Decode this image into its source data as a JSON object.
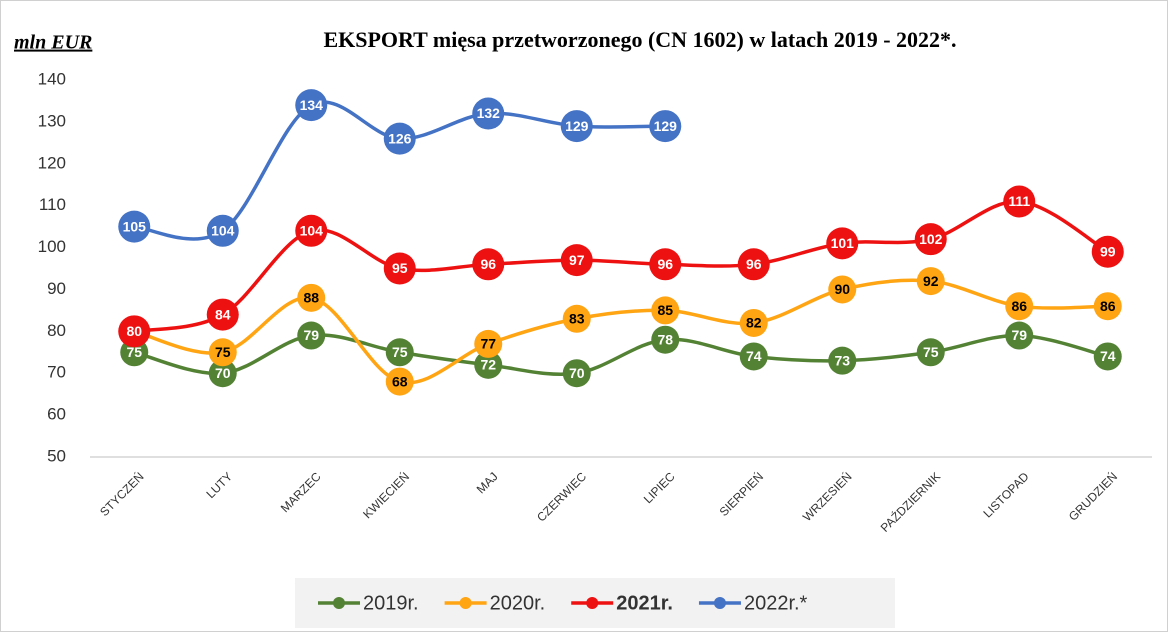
{
  "chart_data": {
    "type": "line",
    "title": "EKSPORT mięsa przetworzonego  (CN 1602) w latach 2019 - 2022*.",
    "y_label": "mln EUR",
    "categories": [
      "STYCZEŃ",
      "LUTY",
      "MARZEC",
      "KWIECIEŃ",
      "MAJ",
      "CZERWIEC",
      "LIPIEC",
      "SIERPIEŃ",
      "WRZESIEŃ",
      "PAŹDZIERNIK",
      "LISTOPAD",
      "GRUDZIEŃ"
    ],
    "series": [
      {
        "name": "2019r.",
        "color": "#548235",
        "label_color": "#ffffff",
        "values": [
          75,
          70,
          79,
          75,
          72,
          70,
          78,
          74,
          73,
          75,
          79,
          74
        ]
      },
      {
        "name": "2020r.",
        "color": "#ffa412",
        "label_color": "#000000",
        "values": [
          80,
          75,
          88,
          68,
          77,
          83,
          85,
          82,
          90,
          92,
          86,
          86
        ]
      },
      {
        "name": "2021r.",
        "color": "#ee1111",
        "label_color": "#ffffff",
        "values": [
          80,
          84,
          104,
          95,
          96,
          97,
          96,
          96,
          101,
          102,
          111,
          99
        ]
      },
      {
        "name": "2022r.*",
        "color": "#4472c4",
        "label_color": "#ffffff",
        "values": [
          105,
          104,
          134,
          126,
          132,
          129,
          129,
          null,
          null,
          null,
          null,
          null
        ]
      }
    ],
    "ylim": [
      50,
      140
    ],
    "yticks": [
      50,
      60,
      70,
      80,
      90,
      100,
      110,
      120,
      130,
      140
    ],
    "grid": false,
    "legend": "bottom"
  }
}
